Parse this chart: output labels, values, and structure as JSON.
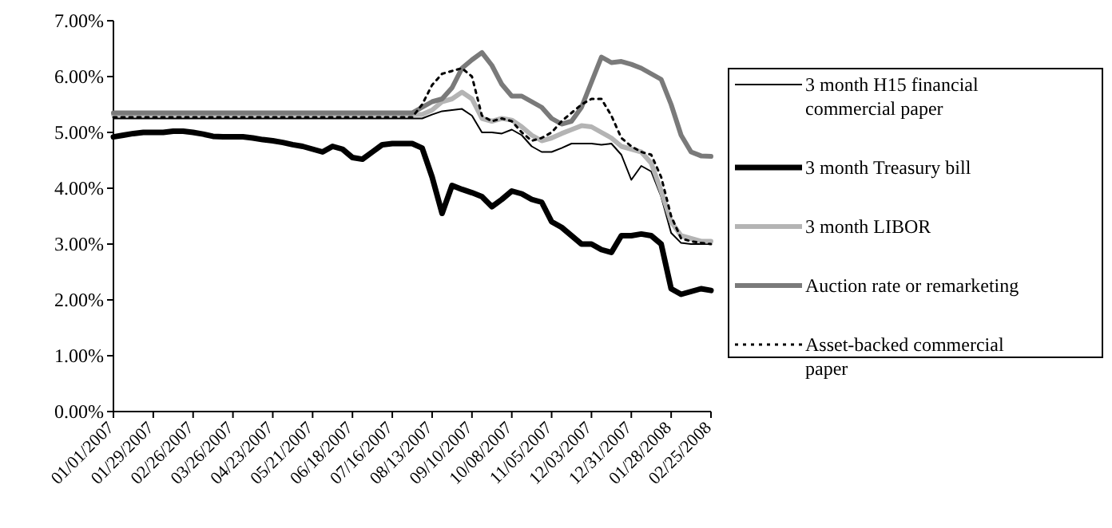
{
  "chart_data": {
    "type": "line",
    "x": [
      "2007-01-01",
      "2007-01-08",
      "2007-01-15",
      "2007-01-22",
      "2007-01-29",
      "2007-02-05",
      "2007-02-12",
      "2007-02-19",
      "2007-02-26",
      "2007-03-05",
      "2007-03-12",
      "2007-03-19",
      "2007-03-26",
      "2007-04-02",
      "2007-04-09",
      "2007-04-16",
      "2007-04-23",
      "2007-04-30",
      "2007-05-07",
      "2007-05-14",
      "2007-05-21",
      "2007-05-28",
      "2007-06-04",
      "2007-06-11",
      "2007-06-18",
      "2007-06-25",
      "2007-07-02",
      "2007-07-09",
      "2007-07-16",
      "2007-07-23",
      "2007-07-30",
      "2007-08-06",
      "2007-08-13",
      "2007-08-20",
      "2007-08-27",
      "2007-09-03",
      "2007-09-10",
      "2007-09-17",
      "2007-09-24",
      "2007-10-01",
      "2007-10-08",
      "2007-10-15",
      "2007-10-22",
      "2007-10-29",
      "2007-11-05",
      "2007-11-12",
      "2007-11-19",
      "2007-11-26",
      "2007-12-03",
      "2007-12-10",
      "2007-12-17",
      "2007-12-24",
      "2007-12-31",
      "2008-01-07",
      "2008-01-14",
      "2008-01-21",
      "2008-01-28",
      "2008-02-04",
      "2008-02-11",
      "2008-02-18",
      "2008-02-25"
    ],
    "xlim": [
      "2007-01-01",
      "2008-02-25"
    ],
    "xticks": [
      {
        "value": "2007-01-01",
        "label": "01/01/2007"
      },
      {
        "value": "2007-01-29",
        "label": "01/29/2007"
      },
      {
        "value": "2007-02-26",
        "label": "02/26/2007"
      },
      {
        "value": "2007-03-26",
        "label": "03/26/2007"
      },
      {
        "value": "2007-04-23",
        "label": "04/23/2007"
      },
      {
        "value": "2007-05-21",
        "label": "05/21/2007"
      },
      {
        "value": "2007-06-18",
        "label": "06/18/2007"
      },
      {
        "value": "2007-07-16",
        "label": "07/16/2007"
      },
      {
        "value": "2007-08-13",
        "label": "08/13/2007"
      },
      {
        "value": "2007-09-10",
        "label": "09/10/2007"
      },
      {
        "value": "2007-10-08",
        "label": "10/08/2007"
      },
      {
        "value": "2007-11-05",
        "label": "11/05/2007"
      },
      {
        "value": "2007-12-03",
        "label": "12/03/2007"
      },
      {
        "value": "2007-12-31",
        "label": "12/31/2007"
      },
      {
        "value": "2008-01-28",
        "label": "01/28/2008"
      },
      {
        "value": "2008-02-25",
        "label": "02/25/2008"
      }
    ],
    "ylim": [
      0,
      7
    ],
    "yticks": [
      {
        "value": 0,
        "label": "0.00%"
      },
      {
        "value": 1,
        "label": "1.00%"
      },
      {
        "value": 2,
        "label": "2.00%"
      },
      {
        "value": 3,
        "label": "3.00%"
      },
      {
        "value": 4,
        "label": "4.00%"
      },
      {
        "value": 5,
        "label": "5.00%"
      },
      {
        "value": 6,
        "label": "6.00%"
      },
      {
        "value": 7,
        "label": "7.00%"
      }
    ],
    "grid": false,
    "legend": "right",
    "marker": "none",
    "series": [
      {
        "name": "3 month H15 financial commercial paper",
        "color": "#000000",
        "line_style": "solid",
        "values": [
          5.25,
          5.25,
          5.25,
          5.25,
          5.25,
          5.25,
          5.25,
          5.25,
          5.25,
          5.25,
          5.25,
          5.25,
          5.25,
          5.25,
          5.25,
          5.25,
          5.25,
          5.25,
          5.25,
          5.25,
          5.25,
          5.25,
          5.25,
          5.25,
          5.25,
          5.25,
          5.25,
          5.25,
          5.25,
          5.25,
          5.25,
          5.25,
          5.32,
          5.38,
          5.4,
          5.42,
          5.3,
          5.0,
          5.0,
          4.98,
          5.05,
          4.95,
          4.75,
          4.65,
          4.65,
          4.72,
          4.8,
          4.8,
          4.8,
          4.78,
          4.8,
          4.6,
          4.15,
          4.4,
          4.3,
          3.85,
          3.2,
          3.02,
          3.0,
          3.0,
          3.0
        ]
      },
      {
        "name": "3 month Treasury bill",
        "color": "#000000",
        "line_style": "solid",
        "values": [
          4.92,
          4.95,
          4.98,
          5.0,
          5.0,
          5.0,
          5.02,
          5.02,
          5.0,
          4.97,
          4.93,
          4.92,
          4.92,
          4.92,
          4.9,
          4.87,
          4.85,
          4.82,
          4.78,
          4.75,
          4.7,
          4.65,
          4.75,
          4.7,
          4.55,
          4.52,
          4.65,
          4.78,
          4.8,
          4.8,
          4.8,
          4.72,
          4.2,
          3.55,
          4.05,
          3.98,
          3.92,
          3.85,
          3.67,
          3.8,
          3.95,
          3.9,
          3.8,
          3.75,
          3.4,
          3.3,
          3.15,
          3.0,
          3.0,
          2.9,
          2.85,
          3.15,
          3.15,
          3.18,
          3.15,
          3.0,
          2.2,
          2.1,
          2.15,
          2.2,
          2.17
        ]
      },
      {
        "name": "3 month LIBOR",
        "color": "#b4b4b4",
        "line_style": "solid",
        "values": [
          5.32,
          5.32,
          5.32,
          5.32,
          5.32,
          5.32,
          5.32,
          5.32,
          5.32,
          5.32,
          5.32,
          5.32,
          5.32,
          5.32,
          5.32,
          5.32,
          5.32,
          5.32,
          5.32,
          5.32,
          5.32,
          5.32,
          5.32,
          5.32,
          5.32,
          5.32,
          5.32,
          5.32,
          5.32,
          5.32,
          5.32,
          5.32,
          5.4,
          5.55,
          5.6,
          5.72,
          5.6,
          5.25,
          5.2,
          5.25,
          5.22,
          5.1,
          4.95,
          4.85,
          4.9,
          4.98,
          5.05,
          5.12,
          5.1,
          5.0,
          4.9,
          4.75,
          4.7,
          4.65,
          4.45,
          3.95,
          3.4,
          3.15,
          3.1,
          3.05,
          3.05
        ]
      },
      {
        "name": "Auction rate or remarketing",
        "color": "#7a7a7a",
        "line_style": "solid",
        "values": [
          5.35,
          5.35,
          5.35,
          5.35,
          5.35,
          5.35,
          5.35,
          5.35,
          5.35,
          5.35,
          5.35,
          5.35,
          5.35,
          5.35,
          5.35,
          5.35,
          5.35,
          5.35,
          5.35,
          5.35,
          5.35,
          5.35,
          5.35,
          5.35,
          5.35,
          5.35,
          5.35,
          5.35,
          5.35,
          5.35,
          5.35,
          5.45,
          5.55,
          5.6,
          5.8,
          6.15,
          6.3,
          6.43,
          6.2,
          5.86,
          5.65,
          5.65,
          5.55,
          5.45,
          5.25,
          5.15,
          5.2,
          5.45,
          5.9,
          6.35,
          6.25,
          6.27,
          6.22,
          6.15,
          6.05,
          5.95,
          5.5,
          4.95,
          4.65,
          4.58,
          4.57
        ]
      },
      {
        "name": "Asset-backed commercial paper",
        "color": "#000000",
        "line_style": "dotted",
        "values": [
          5.27,
          5.27,
          5.27,
          5.27,
          5.27,
          5.27,
          5.27,
          5.27,
          5.27,
          5.27,
          5.27,
          5.27,
          5.27,
          5.27,
          5.27,
          5.27,
          5.27,
          5.27,
          5.27,
          5.27,
          5.27,
          5.27,
          5.27,
          5.27,
          5.27,
          5.27,
          5.27,
          5.27,
          5.27,
          5.27,
          5.27,
          5.5,
          5.85,
          6.05,
          6.1,
          6.15,
          6.0,
          5.3,
          5.2,
          5.25,
          5.2,
          5.0,
          4.85,
          4.9,
          5.0,
          5.2,
          5.35,
          5.5,
          5.6,
          5.6,
          5.3,
          4.9,
          4.75,
          4.65,
          4.6,
          4.2,
          3.5,
          3.1,
          3.05,
          3.02,
          3.0
        ]
      }
    ]
  }
}
